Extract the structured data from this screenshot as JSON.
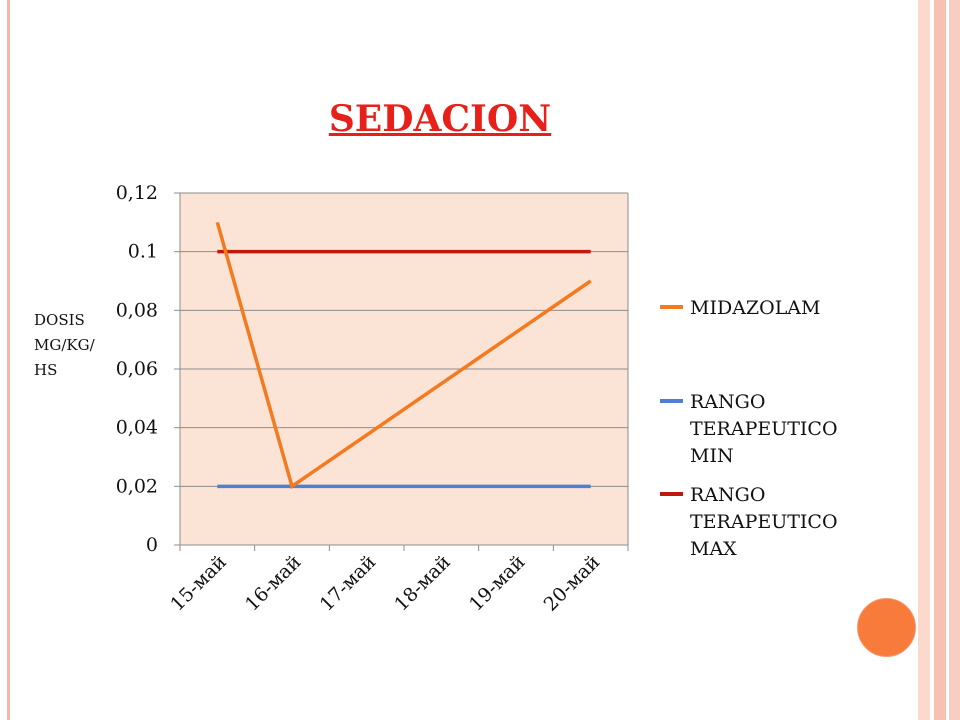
{
  "slide": {
    "title": "SEDACION",
    "ylabel": "DOSIS\nMG/KG/\nHS"
  },
  "colors": {
    "plot_background": "#fbe3d6",
    "midazolam": "#f47a20",
    "min": "#4f7fd0",
    "max": "#c0180c",
    "title": "#e8201a",
    "accent_circle": "#f97b3b"
  },
  "chart_data": {
    "type": "line",
    "title": "SEDACION",
    "xlabel": "",
    "ylabel": "DOSIS MG/KG/ HS",
    "categories": [
      "15-май",
      "16-май",
      "17-май",
      "18-май",
      "19-май",
      "20-май"
    ],
    "ylim": [
      0,
      0.12
    ],
    "yticks": [
      {
        "value": 0,
        "label": "0"
      },
      {
        "value": 0.02,
        "label": "0,02"
      },
      {
        "value": 0.04,
        "label": "0,04"
      },
      {
        "value": 0.06,
        "label": "0,06"
      },
      {
        "value": 0.08,
        "label": "0,08"
      },
      {
        "value": 0.1,
        "label": "0.1"
      },
      {
        "value": 0.12,
        "label": "0,12"
      }
    ],
    "grid": true,
    "legend_position": "right",
    "series": [
      {
        "name": "MIDAZOLAM",
        "legend_lines": [
          "MIDAZOLAM"
        ],
        "color": "#f47a20",
        "x": [
          "15-май",
          "16-май",
          "20-май"
        ],
        "values": [
          0.11,
          0.02,
          0.09
        ]
      },
      {
        "name": "RANGO TERAPEUTICO MIN",
        "legend_lines": [
          "RANGO",
          "TERAPEUTICO",
          "MIN"
        ],
        "color": "#4f7fd0",
        "x": [
          "15-май",
          "20-май"
        ],
        "values": [
          0.02,
          0.02
        ]
      },
      {
        "name": "RANGO TERAPEUTICO MAX",
        "legend_lines": [
          "RANGO",
          "TERAPEUTICO",
          "MAX"
        ],
        "color": "#c0180c",
        "x": [
          "15-май",
          "20-май"
        ],
        "values": [
          0.1,
          0.1
        ]
      }
    ]
  }
}
